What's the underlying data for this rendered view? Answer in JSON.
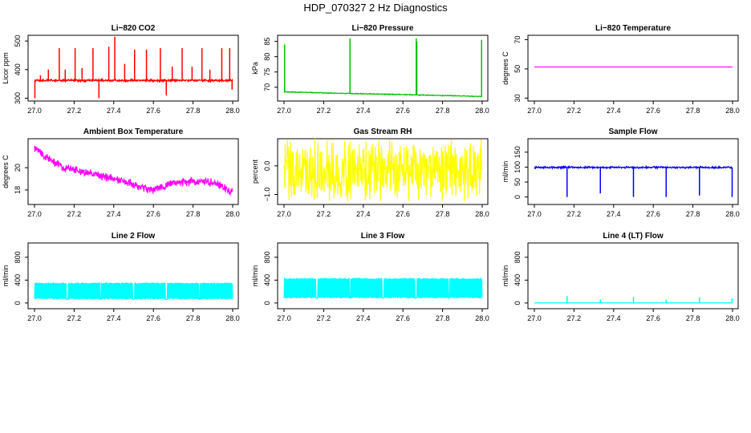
{
  "title": "HDP_070327  2 Hz Diagnostics",
  "chart_data": [
    {
      "type": "line",
      "title": "Li−820 CO2",
      "ylabel": "Licor ppm",
      "color": "#ff0000",
      "xlim": [
        27.0,
        28.0
      ],
      "ylim": [
        290,
        520
      ],
      "xticks": [
        "27.0",
        "27.2",
        "27.4",
        "27.6",
        "27.8",
        "28.0"
      ],
      "yticks": [
        {
          "v": 300,
          "label": "300"
        },
        {
          "v": 400,
          "label": "400"
        },
        {
          "v": 500,
          "label": "500"
        }
      ],
      "baseline": 362,
      "noise": 4,
      "spikes": [
        {
          "x": 27.002,
          "y": 300
        },
        {
          "x": 27.03,
          "y": 380
        },
        {
          "x": 27.07,
          "y": 400
        },
        {
          "x": 27.125,
          "y": 475
        },
        {
          "x": 27.155,
          "y": 400
        },
        {
          "x": 27.205,
          "y": 475
        },
        {
          "x": 27.24,
          "y": 405
        },
        {
          "x": 27.295,
          "y": 475
        },
        {
          "x": 27.325,
          "y": 300
        },
        {
          "x": 27.375,
          "y": 480
        },
        {
          "x": 27.405,
          "y": 515
        },
        {
          "x": 27.455,
          "y": 420
        },
        {
          "x": 27.505,
          "y": 470
        },
        {
          "x": 27.565,
          "y": 470
        },
        {
          "x": 27.635,
          "y": 475
        },
        {
          "x": 27.665,
          "y": 310
        },
        {
          "x": 27.695,
          "y": 410
        },
        {
          "x": 27.745,
          "y": 475
        },
        {
          "x": 27.795,
          "y": 410
        },
        {
          "x": 27.845,
          "y": 475
        },
        {
          "x": 27.885,
          "y": 400
        },
        {
          "x": 27.945,
          "y": 475
        },
        {
          "x": 27.985,
          "y": 475
        },
        {
          "x": 27.997,
          "y": 330
        }
      ]
    },
    {
      "type": "line",
      "title": "Li−820 Pressure",
      "ylabel": "kPa",
      "color": "#00c000",
      "xlim": [
        27.0,
        28.0
      ],
      "ylim": [
        65.5,
        87
      ],
      "xticks": [
        "27.0",
        "27.2",
        "27.4",
        "27.6",
        "27.8",
        "28.0"
      ],
      "yticks": [
        {
          "v": 70,
          "label": "70"
        },
        {
          "v": 75,
          "label": "75"
        },
        {
          "v": 80,
          "label": "80"
        },
        {
          "v": 85,
          "label": "85"
        }
      ],
      "trend": [
        [
          27.0,
          68.5
        ],
        [
          27.3,
          68.0
        ],
        [
          27.6,
          67.6
        ],
        [
          28.0,
          67.0
        ]
      ],
      "noise": 0.15,
      "spikes": [
        {
          "x": 27.003,
          "y": 84
        },
        {
          "x": 27.333,
          "y": 86
        },
        {
          "x": 27.667,
          "y": 86
        },
        {
          "x": 27.67,
          "y": 85
        },
        {
          "x": 27.997,
          "y": 85.5
        }
      ]
    },
    {
      "type": "line",
      "title": "Li−820 Temperature",
      "ylabel": "degrees C",
      "color": "#ff00ff",
      "xlim": [
        27.0,
        28.0
      ],
      "ylim": [
        28,
        73
      ],
      "xticks": [
        "27.0",
        "27.2",
        "27.4",
        "27.6",
        "27.8",
        "28.0"
      ],
      "yticks": [
        {
          "v": 30,
          "label": "30"
        },
        {
          "v": 50,
          "label": "50"
        },
        {
          "v": 70,
          "label": "70"
        }
      ],
      "trend": [
        [
          27.0,
          51.3
        ],
        [
          28.0,
          51.3
        ]
      ],
      "noise": 0,
      "spikes": []
    },
    {
      "type": "line",
      "title": "Ambient Box Temperature",
      "ylabel": "degrees C",
      "color": "#ff00ff",
      "xlim": [
        27.0,
        28.0
      ],
      "ylim": [
        16.7,
        22.6
      ],
      "xticks": [
        "27.0",
        "27.2",
        "27.4",
        "27.6",
        "27.8",
        "28.0"
      ],
      "yticks": [
        {
          "v": 18,
          "label": "18"
        },
        {
          "v": 20,
          "label": "20"
        }
      ],
      "trend": [
        [
          27.0,
          21.8
        ],
        [
          27.05,
          21.0
        ],
        [
          27.15,
          20.0
        ],
        [
          27.3,
          19.4
        ],
        [
          27.45,
          18.8
        ],
        [
          27.55,
          18.2
        ],
        [
          27.6,
          18.0
        ],
        [
          27.7,
          18.6
        ],
        [
          27.8,
          18.8
        ],
        [
          27.9,
          18.7
        ],
        [
          28.0,
          17.8
        ]
      ],
      "noise": 0.4,
      "spikes": []
    },
    {
      "type": "line",
      "title": "Gas Stream RH",
      "ylabel": "percent",
      "color": "#ffff00",
      "xlim": [
        27.0,
        28.0
      ],
      "ylim": [
        -1.35,
        0.95
      ],
      "xticks": [
        "27.0",
        "27.2",
        "27.4",
        "27.6",
        "27.8",
        "28.0"
      ],
      "yticks": [
        {
          "v": -1.0,
          "label": "−1.0"
        },
        {
          "v": 0.0,
          "label": "0.0"
        }
      ],
      "trend": [
        [
          27.0,
          -0.15
        ],
        [
          28.0,
          -0.15
        ]
      ],
      "noise": 1.1,
      "spikes": []
    },
    {
      "type": "line",
      "title": "Sample Flow",
      "ylabel": "ml/min",
      "color": "#0000ff",
      "xlim": [
        27.0,
        28.0
      ],
      "ylim": [
        -25,
        195
      ],
      "xticks": [
        "27.0",
        "27.2",
        "27.4",
        "27.6",
        "27.8",
        "28.0"
      ],
      "yticks": [
        {
          "v": 0,
          "label": "0"
        },
        {
          "v": 50,
          "label": "50"
        },
        {
          "v": 100,
          "label": "100"
        },
        {
          "v": 150,
          "label": "150"
        }
      ],
      "trend": [
        [
          27.0,
          99
        ],
        [
          28.0,
          99
        ]
      ],
      "noise": 3,
      "spikes": [
        {
          "x": 27.165,
          "y": 0
        },
        {
          "x": 27.333,
          "y": 12
        },
        {
          "x": 27.5,
          "y": 0
        },
        {
          "x": 27.665,
          "y": 0
        },
        {
          "x": 27.833,
          "y": 5
        },
        {
          "x": 27.998,
          "y": 0
        }
      ]
    },
    {
      "type": "line",
      "title": "Line 2 Flow",
      "ylabel": "ml/min",
      "color": "#00ffff",
      "xlim": [
        27.0,
        28.0
      ],
      "ylim": [
        -100,
        1050
      ],
      "xticks": [
        "27.0",
        "27.2",
        "27.4",
        "27.6",
        "27.8",
        "28.0"
      ],
      "yticks": [
        {
          "v": 0,
          "label": "0"
        },
        {
          "v": 400,
          "label": "400"
        },
        {
          "v": 800,
          "label": "800"
        }
      ],
      "band": {
        "low": 60,
        "high": 360
      },
      "gaps": [
        27.165,
        27.333,
        27.5,
        27.665,
        27.833
      ],
      "noise": 0,
      "spikes": []
    },
    {
      "type": "line",
      "title": "Line 3 Flow",
      "ylabel": "ml/min",
      "color": "#00ffff",
      "xlim": [
        27.0,
        28.0
      ],
      "ylim": [
        -100,
        1050
      ],
      "xticks": [
        "27.0",
        "27.2",
        "27.4",
        "27.6",
        "27.8",
        "28.0"
      ],
      "yticks": [
        {
          "v": 0,
          "label": "0"
        },
        {
          "v": 400,
          "label": "400"
        },
        {
          "v": 800,
          "label": "800"
        }
      ],
      "band": {
        "low": 80,
        "high": 440
      },
      "gaps": [
        27.165,
        27.333,
        27.5,
        27.665,
        27.833
      ],
      "noise": 0,
      "spikes": []
    },
    {
      "type": "line",
      "title": "Line 4 (LT) Flow",
      "ylabel": "ml/min",
      "color": "#00ffff",
      "xlim": [
        27.0,
        28.0
      ],
      "ylim": [
        -100,
        1050
      ],
      "xticks": [
        "27.0",
        "27.2",
        "27.4",
        "27.6",
        "27.8",
        "28.0"
      ],
      "yticks": [
        {
          "v": 0,
          "label": "0"
        },
        {
          "v": 400,
          "label": "400"
        },
        {
          "v": 800,
          "label": "800"
        }
      ],
      "trend": [
        [
          27.0,
          2
        ],
        [
          28.0,
          2
        ]
      ],
      "noise": 0,
      "spikes": [
        {
          "x": 27.165,
          "y": 120
        },
        {
          "x": 27.333,
          "y": 60
        },
        {
          "x": 27.5,
          "y": 110
        },
        {
          "x": 27.665,
          "y": 60
        },
        {
          "x": 27.833,
          "y": 100
        },
        {
          "x": 27.998,
          "y": 80
        }
      ]
    }
  ]
}
